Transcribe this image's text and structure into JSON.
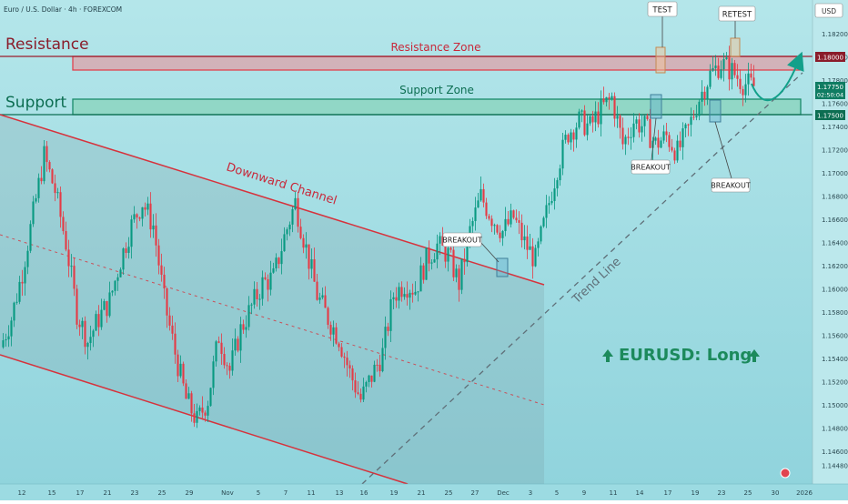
{
  "symbol_title": "Euro / U.S. Dollar · 4h · FOREXCOM",
  "currency": "USD",
  "colors": {
    "background_top": "#b4e6ea",
    "background_bottom": "#8fd3dc",
    "candle_up": "#089981",
    "candle_down": "#e53a45",
    "resistance": "#e0434f",
    "support": "#1a8a6a",
    "channel_line": "#d6323c",
    "trend_line": "#5f6f78",
    "callout_text": "#1c8a5c"
  },
  "annotations": {
    "resistance_label": "Resistance",
    "resistance_zone_label": "Resistance Zone",
    "support_label": "Support",
    "support_zone_label": "Support Zone",
    "channel_label": "Downward Channel",
    "trendline_label": "Trend Line",
    "callout": "EURUSD: Long",
    "test_label": "TEST",
    "retest_label": "RETEST",
    "breakout_labels": [
      "BREAKOUT",
      "BREAKOUT",
      "BREAKOUT"
    ]
  },
  "price_badges": {
    "resistance": "1.18000",
    "current_price": "1.17750",
    "countdown": "02:50:04",
    "support": "1.17500"
  },
  "chart_data": {
    "type": "candlestick",
    "title": "Euro / U.S. Dollar · 4h · FOREXCOM",
    "ylabel": "USD",
    "ylim": [
      1.1438,
      1.1875
    ],
    "y_ticks": [
      1.182,
      1.18,
      1.178,
      1.176,
      1.174,
      1.172,
      1.17,
      1.168,
      1.166,
      1.164,
      1.162,
      1.16,
      1.158,
      1.156,
      1.154,
      1.152,
      1.15,
      1.148,
      1.146,
      1.1448
    ],
    "x_ticks": [
      "12",
      "15",
      "17",
      "21",
      "23",
      "25",
      "29",
      "Nov",
      "5",
      "7",
      "11",
      "13",
      "16",
      "19",
      "21",
      "25",
      "27",
      "Dec",
      "3",
      "5",
      "9",
      "11",
      "14",
      "17",
      "19",
      "23",
      "25",
      "30",
      "2026"
    ],
    "grid": false,
    "current_price": 1.1775,
    "zones": {
      "resistance": [
        1.1788,
        1.18
      ],
      "support": [
        1.175,
        1.1763
      ]
    },
    "path_points": [
      1.155,
      1.1575,
      1.1615,
      1.1665,
      1.1715,
      1.1685,
      1.164,
      1.158,
      1.1555,
      1.1575,
      1.159,
      1.1625,
      1.1655,
      1.1675,
      1.1655,
      1.159,
      1.1545,
      1.1505,
      1.1486,
      1.1505,
      1.156,
      1.153,
      1.1565,
      1.1585,
      1.1605,
      1.161,
      1.1645,
      1.1675,
      1.1635,
      1.1595,
      1.1575,
      1.1558,
      1.1528,
      1.1505,
      1.1525,
      1.1545,
      1.1595,
      1.1605,
      1.16,
      1.1625,
      1.1638,
      1.163,
      1.1605,
      1.165,
      1.168,
      1.1662,
      1.165,
      1.1662,
      1.164,
      1.1625,
      1.1665,
      1.1705,
      1.1735,
      1.1745,
      1.174,
      1.1755,
      1.1765,
      1.1725,
      1.1745,
      1.174,
      1.1725,
      1.1732,
      1.1718,
      1.1738,
      1.1765,
      1.1785,
      1.1795,
      1.1788,
      1.1778,
      1.1775
    ]
  }
}
